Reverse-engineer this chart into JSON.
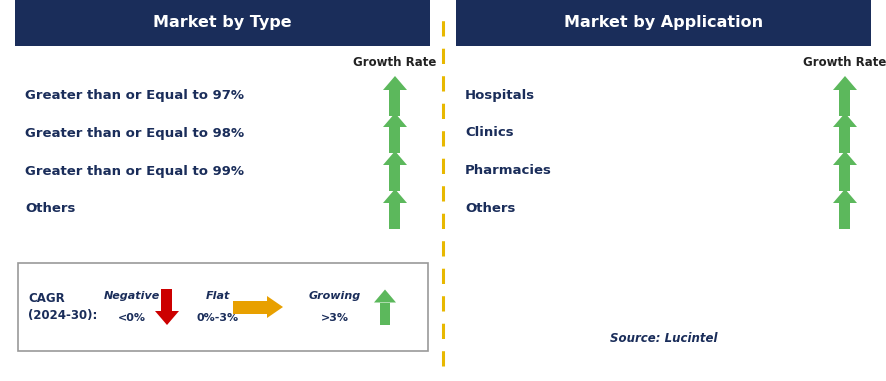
{
  "left_title": "Market by Type",
  "right_title": "Market by Application",
  "left_items": [
    "Greater than or Equal to 97%",
    "Greater than or Equal to 98%",
    "Greater than or Equal to 99%",
    "Others"
  ],
  "right_items": [
    "Hospitals",
    "Clinics",
    "Pharmacies",
    "Others"
  ],
  "header_bg_color": "#1a2d5a",
  "header_text_color": "#ffffff",
  "item_text_color": "#1a2d5a",
  "growth_rate_label": "Growth Rate",
  "source_text": "Source: Lucintel",
  "bg_color": "#ffffff",
  "dashed_line_color": "#e8b800",
  "arrow_green": "#5cb85c",
  "arrow_red": "#cc0000",
  "arrow_yellow": "#e8a000",
  "legend_box_color": "#888888"
}
